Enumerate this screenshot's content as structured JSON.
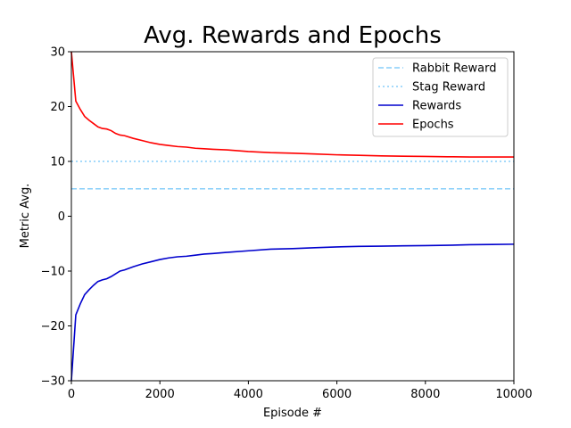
{
  "chart_data": {
    "type": "line",
    "title": "Avg. Rewards and Epochs",
    "xlabel": "Episode #",
    "ylabel": "Metric Avg.",
    "xlim": [
      0,
      10000
    ],
    "ylim": [
      -30,
      30
    ],
    "xticks": [
      "0",
      "2000",
      "4000",
      "6000",
      "8000",
      "10000"
    ],
    "yticks": [
      "−30",
      "−20",
      "−10",
      "0",
      "10",
      "20",
      "30"
    ],
    "grid": false,
    "legend_position": "top-right",
    "series": [
      {
        "name": "Rabbit Reward",
        "color": "#87cefa",
        "style": "dashed",
        "x": [
          0,
          10000
        ],
        "y": [
          5,
          5
        ]
      },
      {
        "name": "Stag Reward",
        "color": "#87cefa",
        "style": "dotted",
        "x": [
          0,
          10000
        ],
        "y": [
          10,
          10
        ]
      },
      {
        "name": "Rewards",
        "color": "#0000cd",
        "style": "solid",
        "x": [
          0,
          100,
          200,
          300,
          400,
          500,
          600,
          700,
          800,
          900,
          1000,
          1100,
          1200,
          1400,
          1600,
          1800,
          2000,
          2200,
          2400,
          2600,
          2800,
          3000,
          3200,
          3500,
          4000,
          4500,
          5000,
          5500,
          6000,
          6500,
          7000,
          7500,
          8000,
          8500,
          9000,
          9500,
          10000
        ],
        "y": [
          -30,
          -18,
          -16,
          -14.3,
          -13.4,
          -12.6,
          -11.9,
          -11.6,
          -11.4,
          -11.0,
          -10.5,
          -10.0,
          -9.8,
          -9.2,
          -8.7,
          -8.3,
          -7.9,
          -7.6,
          -7.4,
          -7.3,
          -7.1,
          -6.9,
          -6.8,
          -6.6,
          -6.3,
          -6.0,
          -5.9,
          -5.75,
          -5.6,
          -5.5,
          -5.45,
          -5.4,
          -5.35,
          -5.3,
          -5.2,
          -5.15,
          -5.1
        ]
      },
      {
        "name": "Epochs",
        "color": "#ff0000",
        "style": "solid",
        "x": [
          0,
          100,
          200,
          300,
          400,
          500,
          600,
          700,
          800,
          900,
          1000,
          1100,
          1200,
          1400,
          1600,
          1800,
          2000,
          2200,
          2400,
          2600,
          2800,
          3000,
          3200,
          3500,
          4000,
          4500,
          5000,
          5500,
          6000,
          6500,
          7000,
          7500,
          8000,
          8500,
          9000,
          9500,
          10000
        ],
        "y": [
          30,
          21,
          19.5,
          18.2,
          17.5,
          16.9,
          16.3,
          16.0,
          15.9,
          15.6,
          15.1,
          14.8,
          14.7,
          14.2,
          13.8,
          13.4,
          13.1,
          12.9,
          12.7,
          12.6,
          12.4,
          12.3,
          12.2,
          12.1,
          11.8,
          11.6,
          11.5,
          11.35,
          11.2,
          11.1,
          11.0,
          10.95,
          10.9,
          10.85,
          10.8,
          10.8,
          10.8
        ]
      }
    ]
  }
}
